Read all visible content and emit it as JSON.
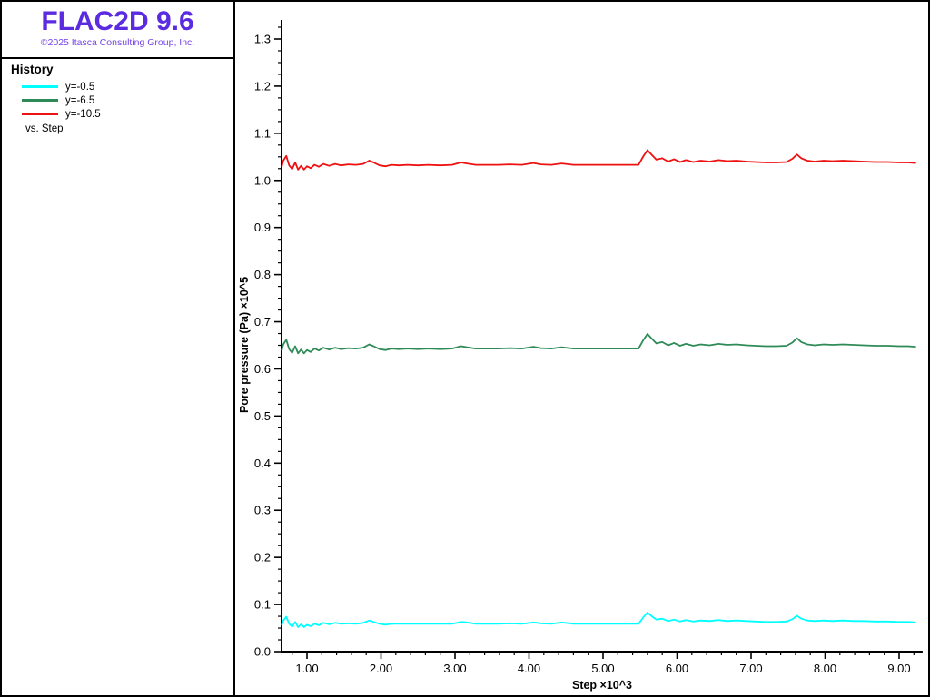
{
  "window": {
    "app_title": "FLAC2D 9.6",
    "copyright": "©2025 Itasca Consulting Group, Inc."
  },
  "legend": {
    "title": "History",
    "items": [
      {
        "label": "y=-0.5",
        "color": "#00ffff"
      },
      {
        "label": "y=-6.5",
        "color": "#2e8b57"
      },
      {
        "label": "y=-10.5",
        "color": "#ee1111"
      }
    ],
    "footer": "vs. Step"
  },
  "chart_data": {
    "type": "line",
    "title": "History",
    "xlabel": "Step ×10^3",
    "ylabel": "Pore pressure (Pa) ×10^5",
    "xlim": [
      0.656,
      9.318
    ],
    "ylim": [
      0,
      1.3405
    ],
    "grid": false,
    "legend_position": "left-panel",
    "x_major_ticks": [
      1,
      2,
      3,
      4,
      5,
      6,
      7,
      8,
      9
    ],
    "x_tick_labels": [
      "1.00",
      "2.00",
      "3.00",
      "4.00",
      "5.00",
      "6.00",
      "7.00",
      "8.00",
      "9.00"
    ],
    "x_minor_step": 0.2,
    "y_major_ticks": [
      0,
      0.1,
      0.2,
      0.3,
      0.4,
      0.5,
      0.6,
      0.7,
      0.8,
      0.9,
      1.0,
      1.1,
      1.2,
      1.3
    ],
    "y_tick_labels": [
      "0.0",
      "0.1",
      "0.2",
      "0.3",
      "0.4",
      "0.5",
      "0.6",
      "0.7",
      "0.8",
      "0.9",
      "1.0",
      "1.1",
      "1.2",
      "1.3"
    ],
    "y_minor_step": 0.025,
    "x": [
      0.66,
      0.68,
      0.72,
      0.76,
      0.8,
      0.84,
      0.88,
      0.92,
      0.96,
      1.0,
      1.05,
      1.1,
      1.16,
      1.22,
      1.3,
      1.38,
      1.46,
      1.56,
      1.66,
      1.76,
      1.84,
      1.9,
      1.98,
      2.06,
      2.14,
      2.24,
      2.36,
      2.5,
      2.64,
      2.8,
      2.96,
      3.08,
      3.16,
      3.28,
      3.42,
      3.58,
      3.74,
      3.9,
      4.06,
      4.16,
      4.3,
      4.44,
      4.6,
      4.8,
      5.0,
      5.2,
      5.35,
      5.48,
      5.54,
      5.6,
      5.66,
      5.72,
      5.8,
      5.88,
      5.96,
      6.04,
      6.12,
      6.22,
      6.32,
      6.44,
      6.56,
      6.68,
      6.8,
      6.94,
      7.06,
      7.2,
      7.34,
      7.48,
      7.56,
      7.62,
      7.68,
      7.76,
      7.86,
      7.98,
      8.1,
      8.24,
      8.38,
      8.52,
      8.68,
      8.84,
      9.0,
      9.12,
      9.22
    ],
    "series": [
      {
        "name": "y=-0.5",
        "color": "#00ffff",
        "values": [
          0.057,
          0.066,
          0.074,
          0.059,
          0.053,
          0.063,
          0.052,
          0.058,
          0.052,
          0.057,
          0.054,
          0.059,
          0.056,
          0.061,
          0.058,
          0.061,
          0.059,
          0.06,
          0.059,
          0.061,
          0.066,
          0.063,
          0.059,
          0.057,
          0.059,
          0.059,
          0.059,
          0.059,
          0.059,
          0.059,
          0.059,
          0.063,
          0.062,
          0.059,
          0.059,
          0.059,
          0.06,
          0.059,
          0.062,
          0.06,
          0.059,
          0.062,
          0.059,
          0.059,
          0.059,
          0.059,
          0.059,
          0.059,
          0.072,
          0.083,
          0.075,
          0.068,
          0.07,
          0.065,
          0.068,
          0.064,
          0.067,
          0.064,
          0.066,
          0.065,
          0.067,
          0.065,
          0.066,
          0.065,
          0.064,
          0.063,
          0.063,
          0.064,
          0.069,
          0.076,
          0.07,
          0.066,
          0.065,
          0.066,
          0.065,
          0.066,
          0.065,
          0.065,
          0.064,
          0.064,
          0.063,
          0.063,
          0.062
        ]
      },
      {
        "name": "y=-6.5",
        "color": "#2e8b57",
        "values": [
          0.64,
          0.652,
          0.662,
          0.642,
          0.634,
          0.648,
          0.633,
          0.641,
          0.633,
          0.64,
          0.636,
          0.643,
          0.639,
          0.645,
          0.641,
          0.645,
          0.642,
          0.644,
          0.643,
          0.645,
          0.652,
          0.648,
          0.642,
          0.64,
          0.643,
          0.642,
          0.643,
          0.642,
          0.643,
          0.642,
          0.643,
          0.648,
          0.646,
          0.643,
          0.643,
          0.643,
          0.644,
          0.643,
          0.647,
          0.644,
          0.643,
          0.646,
          0.643,
          0.643,
          0.643,
          0.643,
          0.643,
          0.643,
          0.66,
          0.674,
          0.664,
          0.654,
          0.657,
          0.65,
          0.655,
          0.649,
          0.653,
          0.649,
          0.652,
          0.65,
          0.653,
          0.651,
          0.652,
          0.65,
          0.649,
          0.648,
          0.648,
          0.649,
          0.656,
          0.665,
          0.657,
          0.652,
          0.65,
          0.652,
          0.651,
          0.652,
          0.651,
          0.65,
          0.649,
          0.649,
          0.648,
          0.648,
          0.647
        ]
      },
      {
        "name": "y=-10.5",
        "color": "#ee1111",
        "values": [
          1.03,
          1.042,
          1.052,
          1.032,
          1.024,
          1.038,
          1.023,
          1.031,
          1.023,
          1.03,
          1.026,
          1.033,
          1.029,
          1.035,
          1.031,
          1.035,
          1.032,
          1.034,
          1.033,
          1.035,
          1.042,
          1.038,
          1.032,
          1.03,
          1.033,
          1.032,
          1.033,
          1.032,
          1.033,
          1.032,
          1.033,
          1.038,
          1.036,
          1.033,
          1.033,
          1.033,
          1.034,
          1.033,
          1.037,
          1.034,
          1.033,
          1.036,
          1.033,
          1.033,
          1.033,
          1.033,
          1.033,
          1.033,
          1.05,
          1.064,
          1.054,
          1.044,
          1.047,
          1.04,
          1.045,
          1.039,
          1.043,
          1.039,
          1.042,
          1.04,
          1.043,
          1.041,
          1.042,
          1.04,
          1.039,
          1.038,
          1.038,
          1.039,
          1.046,
          1.055,
          1.047,
          1.042,
          1.04,
          1.042,
          1.041,
          1.042,
          1.041,
          1.04,
          1.039,
          1.039,
          1.038,
          1.038,
          1.037
        ]
      }
    ]
  }
}
